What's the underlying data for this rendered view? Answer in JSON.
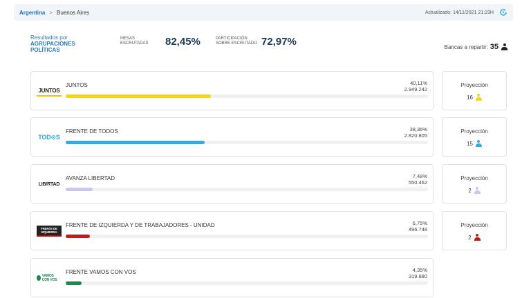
{
  "breadcrumb": {
    "country": "Argentina",
    "separator": ">",
    "province": "Buenos Aires"
  },
  "updated": "Actualizado: 14/11/2021 21:23H",
  "summary": {
    "title_line1": "Resultados por",
    "title_line2": "AGRUPACIONES",
    "title_line3": "POLÍTICAS",
    "mesas_label1": "MESAS",
    "mesas_label2": "ESCRUTADAS",
    "mesas_value": "82,45%",
    "part_label1": "PARTICIPACIÓN",
    "part_label2": "SOBRE ESCRUTADO",
    "part_value": "72,97%",
    "bancas_label": "Bancas a repartir:",
    "bancas_value": "35"
  },
  "proj_label": "Proyección",
  "parties": [
    {
      "name": "JUNTOS",
      "logo": "JUNTOS",
      "pct": "40,11%",
      "votes": "2.949.242",
      "fraction": 0.4011,
      "color": "#f4d614",
      "seats": "16",
      "seat_color": "#f4d614"
    },
    {
      "name": "FRENTE DE TODOS",
      "logo": "TOD⊙S",
      "pct": "38,36%",
      "votes": "2.820.805",
      "fraction": 0.3836,
      "color": "#36a9e1",
      "seats": "15",
      "seat_color": "#36a9e1"
    },
    {
      "name": "AVANZA LIBERTAD",
      "logo": "LIB/RTAD",
      "pct": "7,48%",
      "votes": "550.462",
      "fraction": 0.0748,
      "color": "#c9c9ef",
      "seats": "2",
      "seat_color": "#c9c9ef"
    },
    {
      "name": "FRENTE DE IZQUIERDA Y DE TRABAJADORES - UNIDAD",
      "logo": "FRENTE DE IZQUIERDA",
      "pct": "6,75%",
      "votes": "496.748",
      "fraction": 0.0675,
      "color": "#c41a1a",
      "seats": "2",
      "seat_color": "#c41a1a"
    },
    {
      "name": "FRENTE VAMOS CON VOS",
      "logo": "VAMOS CON VOS",
      "pct": "4,35%",
      "votes": "319.880",
      "fraction": 0.0435,
      "color": "#1a8a4b"
    }
  ]
}
